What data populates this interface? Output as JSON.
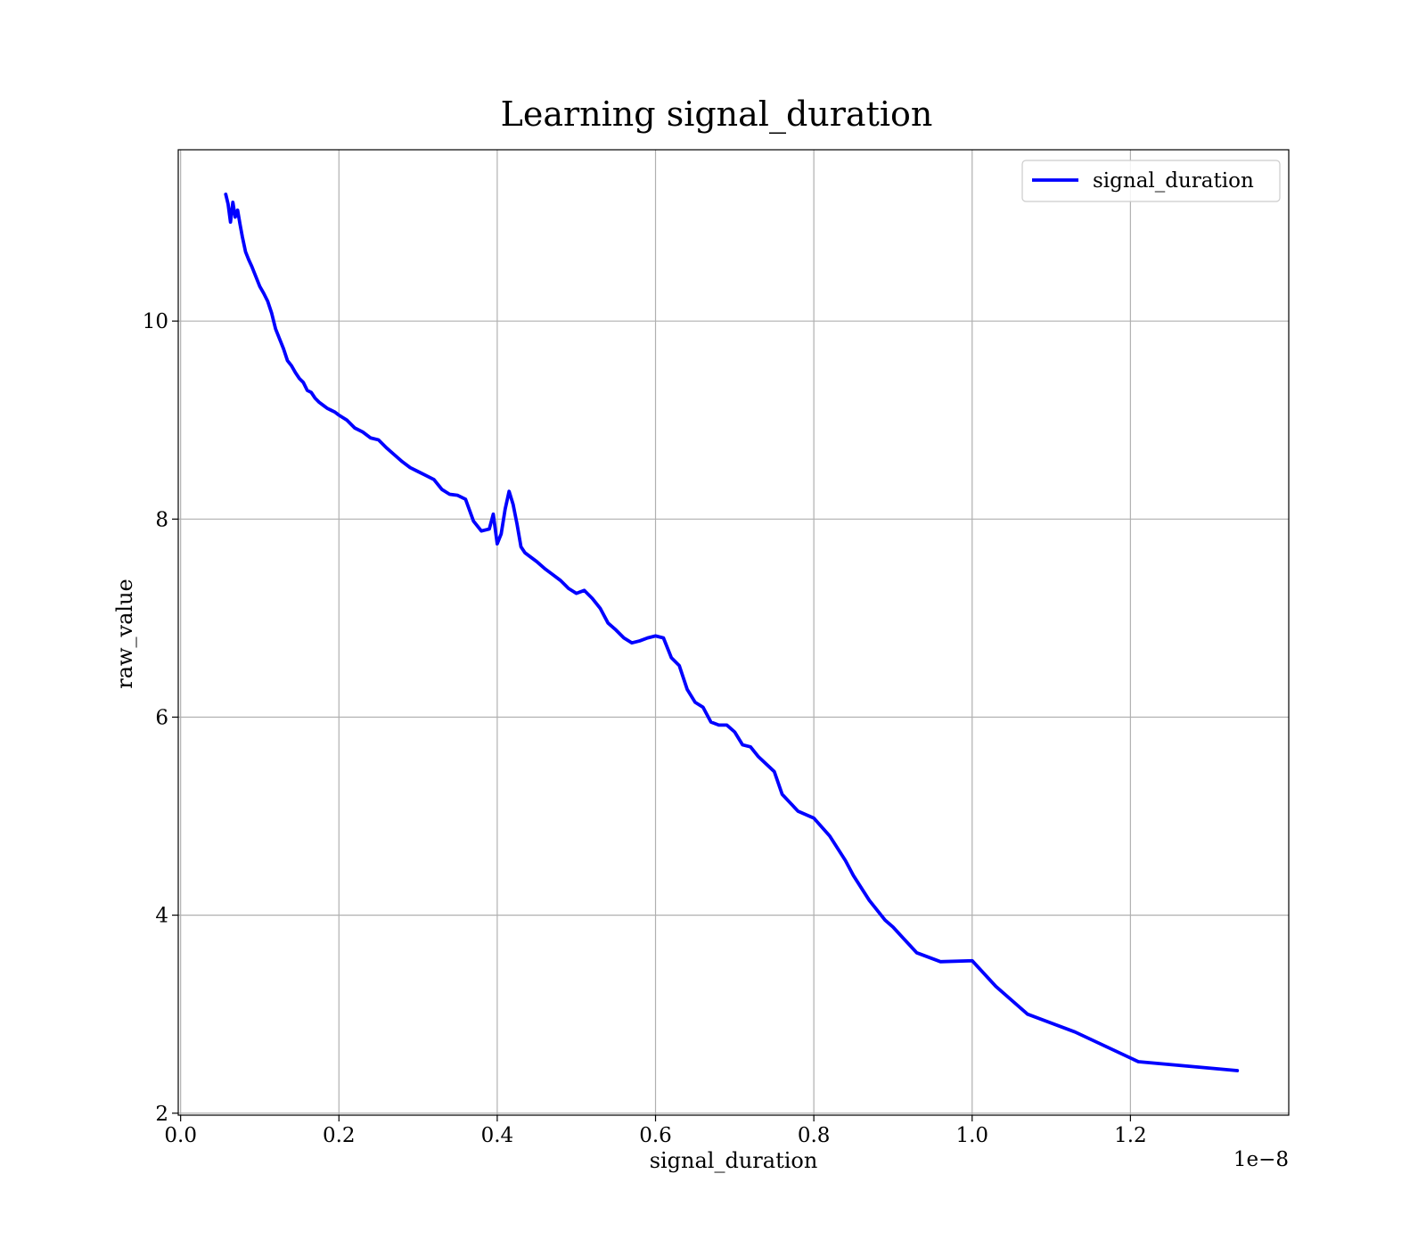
{
  "chart_data": {
    "type": "line",
    "title": "Learning signal_duration",
    "xlabel": "signal_duration",
    "ylabel": "raw_value",
    "x_offset_label": "1e−8",
    "xlim": [
      -0.003,
      1.4
    ],
    "ylim": [
      1.98,
      11.73
    ],
    "x_ticks": [
      0.0,
      0.2,
      0.4,
      0.6,
      0.8,
      1.0,
      1.2
    ],
    "x_tick_labels": [
      "0.0",
      "0.2",
      "0.4",
      "0.6",
      "0.8",
      "1.0",
      "1.2"
    ],
    "y_ticks": [
      2,
      4,
      6,
      8,
      10
    ],
    "y_tick_labels": [
      "2",
      "4",
      "6",
      "8",
      "10"
    ],
    "grid": true,
    "legend_position": "top-right",
    "colors": {
      "series": "#0000ff",
      "grid": "#b0b0b0"
    },
    "series": [
      {
        "name": "signal_duration",
        "color": "#0000ff",
        "x": [
          0.057,
          0.06,
          0.063,
          0.066,
          0.069,
          0.072,
          0.075,
          0.078,
          0.082,
          0.086,
          0.09,
          0.095,
          0.1,
          0.105,
          0.11,
          0.115,
          0.12,
          0.125,
          0.13,
          0.135,
          0.14,
          0.145,
          0.15,
          0.155,
          0.16,
          0.165,
          0.17,
          0.175,
          0.18,
          0.185,
          0.19,
          0.195,
          0.2,
          0.21,
          0.22,
          0.23,
          0.24,
          0.25,
          0.26,
          0.27,
          0.28,
          0.29,
          0.3,
          0.31,
          0.32,
          0.33,
          0.34,
          0.35,
          0.36,
          0.37,
          0.38,
          0.39,
          0.395,
          0.4,
          0.405,
          0.41,
          0.415,
          0.42,
          0.425,
          0.43,
          0.435,
          0.44,
          0.45,
          0.46,
          0.47,
          0.48,
          0.49,
          0.5,
          0.51,
          0.52,
          0.53,
          0.54,
          0.55,
          0.56,
          0.57,
          0.58,
          0.59,
          0.6,
          0.61,
          0.62,
          0.63,
          0.64,
          0.65,
          0.66,
          0.67,
          0.68,
          0.69,
          0.7,
          0.71,
          0.72,
          0.73,
          0.75,
          0.76,
          0.78,
          0.8,
          0.82,
          0.84,
          0.85,
          0.87,
          0.89,
          0.9,
          0.93,
          0.96,
          1.0,
          1.03,
          1.07,
          1.13,
          1.21,
          1.335
        ],
        "values": [
          11.28,
          11.18,
          11.0,
          11.2,
          11.05,
          11.12,
          10.98,
          10.85,
          10.7,
          10.62,
          10.55,
          10.45,
          10.35,
          10.28,
          10.2,
          10.08,
          9.92,
          9.82,
          9.72,
          9.6,
          9.55,
          9.48,
          9.42,
          9.38,
          9.3,
          9.28,
          9.22,
          9.18,
          9.15,
          9.12,
          9.1,
          9.08,
          9.05,
          9.0,
          8.92,
          8.88,
          8.82,
          8.8,
          8.72,
          8.65,
          8.58,
          8.52,
          8.48,
          8.44,
          8.4,
          8.3,
          8.25,
          8.24,
          8.2,
          7.98,
          7.88,
          7.9,
          8.05,
          7.75,
          7.85,
          8.1,
          8.28,
          8.15,
          7.95,
          7.72,
          7.66,
          7.63,
          7.57,
          7.5,
          7.44,
          7.38,
          7.3,
          7.25,
          7.28,
          7.2,
          7.1,
          6.95,
          6.88,
          6.8,
          6.75,
          6.77,
          6.8,
          6.82,
          6.8,
          6.6,
          6.52,
          6.28,
          6.15,
          6.1,
          5.95,
          5.92,
          5.92,
          5.85,
          5.72,
          5.7,
          5.6,
          5.45,
          5.22,
          5.05,
          4.98,
          4.8,
          4.55,
          4.4,
          4.15,
          3.95,
          3.88,
          3.62,
          3.53,
          3.54,
          3.28,
          3.0,
          2.82,
          2.52,
          2.43
        ]
      }
    ]
  }
}
